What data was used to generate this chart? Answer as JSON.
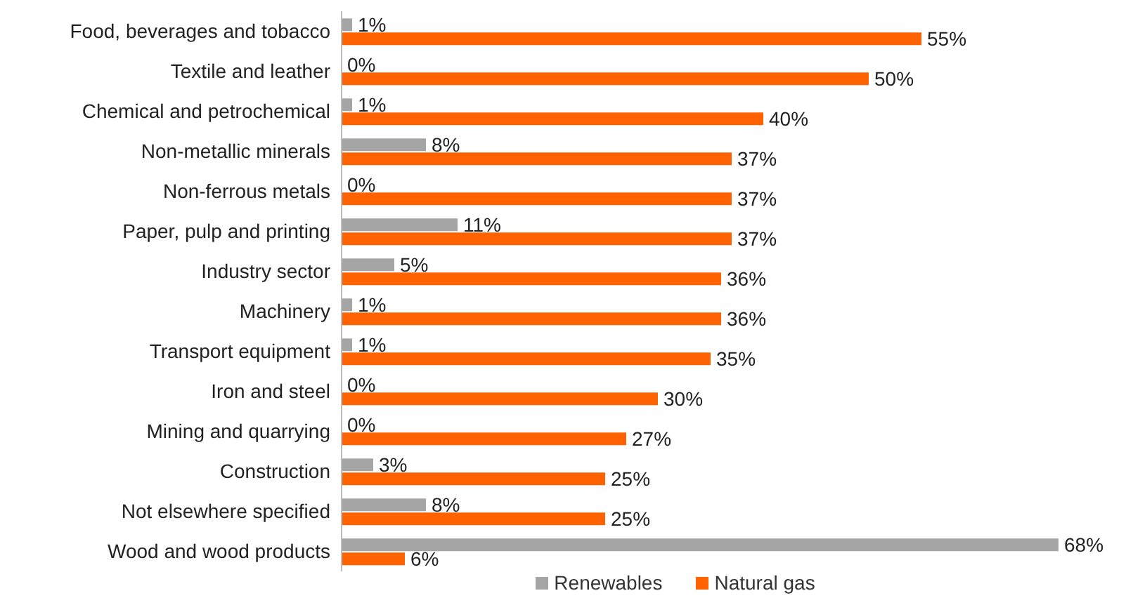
{
  "chart_data": {
    "type": "bar",
    "orientation": "horizontal",
    "categories": [
      "Food, beverages and tobacco",
      "Textile and leather",
      "Chemical and petrochemical",
      "Non-metallic minerals",
      "Non-ferrous metals",
      "Paper, pulp and printing",
      "Industry sector",
      "Machinery",
      "Transport equipment",
      "Iron and steel",
      "Mining and quarrying",
      "Construction",
      "Not elsewhere specified",
      "Wood and wood products"
    ],
    "series": [
      {
        "name": "Renewables",
        "color": "#a5a5a5",
        "values": [
          1,
          0,
          1,
          8,
          0,
          11,
          5,
          1,
          1,
          0,
          0,
          3,
          8,
          68
        ],
        "value_labels": [
          "1%",
          "0%",
          "1%",
          "8%",
          "0%",
          "11%",
          "5%",
          "1%",
          "1%",
          "0%",
          "0%",
          "3%",
          "8%",
          "68%"
        ]
      },
      {
        "name": "Natural gas",
        "color": "#ff6200",
        "values": [
          55,
          50,
          40,
          37,
          37,
          37,
          36,
          36,
          35,
          30,
          27,
          25,
          25,
          6
        ],
        "value_labels": [
          "55%",
          "50%",
          "40%",
          "37%",
          "37%",
          "37%",
          "36%",
          "36%",
          "35%",
          "30%",
          "27%",
          "25%",
          "25%",
          "6%"
        ]
      }
    ],
    "tick_labels": "y",
    "legend": "bottom"
  }
}
